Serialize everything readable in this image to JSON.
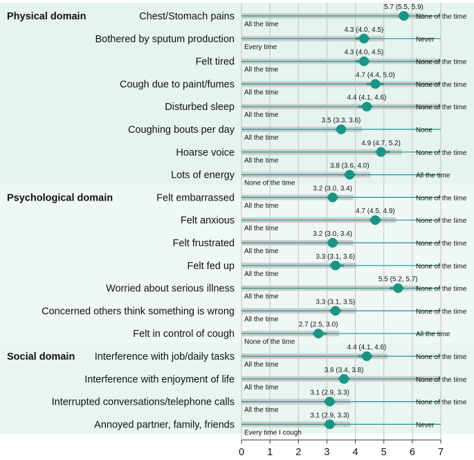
{
  "chart_data": {
    "type": "dot-range",
    "xlim": [
      0,
      7
    ],
    "xticks": [
      0,
      1,
      2,
      3,
      4,
      5,
      6,
      7
    ],
    "grid": true,
    "colors": {
      "physical_band": "#e6f4ef",
      "psychological_band": "#eff8f5",
      "social_band": "#e9f5f1",
      "marker": "#1a9485",
      "line": "#1a9485",
      "bar": "#c6c6c6",
      "grid": "#c8c8c8"
    },
    "domains": [
      {
        "name": "Physical domain",
        "key": "physical",
        "start": 0,
        "end": 7
      },
      {
        "name": "Psychological domain",
        "key": "psychological",
        "start": 8,
        "end": 14
      },
      {
        "name": "Social domain",
        "key": "social",
        "start": 15,
        "end": 18
      }
    ],
    "items": [
      {
        "label": "Chest/Stomach pains",
        "value": 5.7,
        "ci_low": 5.5,
        "ci_high": 5.9,
        "value_text": "5.7 (5.5, 5.9)",
        "left_anchor": "All the time",
        "right_anchor": "None of the time",
        "bar_full": false
      },
      {
        "label": "Bothered by sputum production",
        "value": 4.3,
        "ci_low": 4.0,
        "ci_high": 4.5,
        "value_text": "4.3 (4.0, 4.5)",
        "left_anchor": "Every time",
        "right_anchor": "Never",
        "bar_full": false
      },
      {
        "label": "Felt tired",
        "value": 4.3,
        "ci_low": 4.0,
        "ci_high": 4.5,
        "value_text": "4.3 (4.0, 4.5)",
        "left_anchor": "All the time",
        "right_anchor": "None of the time",
        "bar_full": true
      },
      {
        "label": "Cough due to paint/fumes",
        "value": 4.7,
        "ci_low": 4.4,
        "ci_high": 5.0,
        "value_text": "4.7 (4.4, 5.0)",
        "left_anchor": "All the time",
        "right_anchor": "None of the time",
        "bar_full": true
      },
      {
        "label": "Disturbed sleep",
        "value": 4.4,
        "ci_low": 4.1,
        "ci_high": 4.6,
        "value_text": "4.4 (4.1, 4.6)",
        "left_anchor": "All the time",
        "right_anchor": "None of the time",
        "bar_full": true
      },
      {
        "label": "Coughing bouts per day",
        "value": 3.5,
        "ci_low": 3.3,
        "ci_high": 3.6,
        "value_text": "3.5 (3.3, 3.6)",
        "left_anchor": "All the time",
        "right_anchor": "None",
        "bar_full": false
      },
      {
        "label": "Hoarse voice",
        "value": 4.9,
        "ci_low": 4.7,
        "ci_high": 5.2,
        "value_text": "4.9 (4.7, 5.2)",
        "left_anchor": "All the time",
        "right_anchor": "None of the time",
        "bar_full": false
      },
      {
        "label": "Lots of energy",
        "value": 3.8,
        "ci_low": 3.6,
        "ci_high": 4.0,
        "value_text": "3.8 (3.6, 4.0)",
        "left_anchor": "None of the time",
        "right_anchor": "All the time",
        "bar_full": false
      },
      {
        "label": "Felt embarrassed",
        "value": 3.2,
        "ci_low": 3.0,
        "ci_high": 3.4,
        "value_text": "3.2 (3.0, 3.4)",
        "left_anchor": "All the time",
        "right_anchor": "None of the time",
        "bar_full": false
      },
      {
        "label": "Felt anxious",
        "value": 4.7,
        "ci_low": 4.5,
        "ci_high": 4.9,
        "value_text": "4.7 (4.5, 4.9)",
        "left_anchor": "All the time",
        "right_anchor": "None of the time",
        "bar_full": false
      },
      {
        "label": "Felt frustrated",
        "value": 3.2,
        "ci_low": 3.0,
        "ci_high": 3.4,
        "value_text": "3.2 (3.0, 3.4)",
        "left_anchor": "All the time",
        "right_anchor": "None of the time",
        "bar_full": false
      },
      {
        "label": "Felt fed up",
        "value": 3.3,
        "ci_low": 3.1,
        "ci_high": 3.6,
        "value_text": "3.3 (3.1, 3.6)",
        "left_anchor": "All the time",
        "right_anchor": "None of the time",
        "bar_full": false
      },
      {
        "label": "Worried about serious illness",
        "value": 5.5,
        "ci_low": 5.2,
        "ci_high": 5.7,
        "value_text": "5.5 (5.2, 5.7)",
        "left_anchor": "All the time",
        "right_anchor": "None of the time",
        "bar_full": false
      },
      {
        "label": "Concerned others think something is wrong",
        "value": 3.3,
        "ci_low": 3.1,
        "ci_high": 3.5,
        "value_text": "3.3 (3.1, 3.5)",
        "left_anchor": "All the time",
        "right_anchor": "None of the time",
        "bar_full": false
      },
      {
        "label": "Felt in control of cough",
        "value": 2.7,
        "ci_low": 2.5,
        "ci_high": 3.0,
        "value_text": "2.7 (2.5, 3.0)",
        "left_anchor": "None of the time",
        "right_anchor": "All the time",
        "bar_full": false
      },
      {
        "label": "Interference with job/daily tasks",
        "value": 4.4,
        "ci_low": 4.1,
        "ci_high": 4.6,
        "value_text": "4.4 (4.1, 4.6)",
        "left_anchor": "All the time",
        "right_anchor": "None of the time",
        "bar_full": false
      },
      {
        "label": "Interference with enjoyment of life",
        "value": 3.6,
        "ci_low": 3.4,
        "ci_high": 3.8,
        "value_text": "3.6 (3.4, 3.8)",
        "left_anchor": "All the time",
        "right_anchor": "None of the time",
        "bar_full": true
      },
      {
        "label": "Interrupted conversations/telephone calls",
        "value": 3.1,
        "ci_low": 2.9,
        "ci_high": 3.3,
        "value_text": "3.1 (2.9, 3.3)",
        "left_anchor": "All the time",
        "right_anchor": "None of the time",
        "bar_full": false
      },
      {
        "label": "Annoyed partner, family, friends",
        "value": 3.1,
        "ci_low": 2.9,
        "ci_high": 3.3,
        "value_text": "3.1 (2.9, 3.3)",
        "left_anchor": "Every time I cough",
        "right_anchor": "Never",
        "bar_full": false
      }
    ]
  }
}
